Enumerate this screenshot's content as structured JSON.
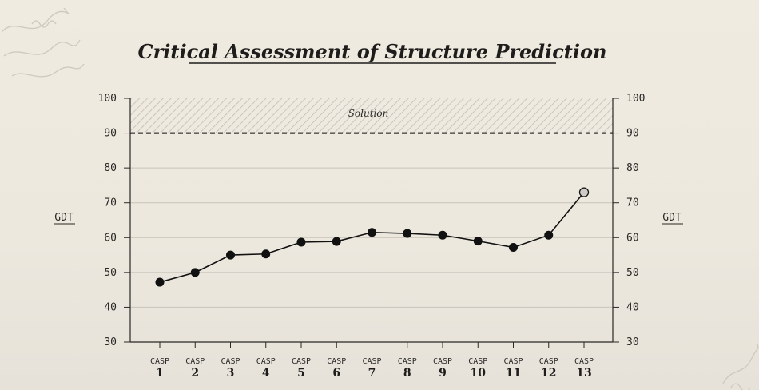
{
  "chart_data": {
    "type": "line",
    "title": "Critical Assessment of Structure Prediction",
    "ylabel": "GDT",
    "ylabel_right": "GDT",
    "ylim": [
      30,
      100
    ],
    "yticks": [
      30,
      40,
      50,
      60,
      70,
      80,
      90,
      100
    ],
    "grid": true,
    "category_prefix": "CASP",
    "categories": [
      "1",
      "2",
      "3",
      "4",
      "5",
      "6",
      "7",
      "8",
      "9",
      "10",
      "11",
      "12",
      "13"
    ],
    "values": [
      47.2,
      50.0,
      55.0,
      55.3,
      58.7,
      58.9,
      61.5,
      61.2,
      60.7,
      59.0,
      57.2,
      60.7,
      73.0
    ],
    "threshold": {
      "value": 90,
      "label": "Solution",
      "band": [
        90,
        100
      ]
    },
    "colors": {
      "line": "#111111",
      "marker": "#111111",
      "highlight_marker": "#cfcbc5",
      "grid": "#c8c3b8",
      "band_hatch": "#b9b5ad"
    }
  }
}
